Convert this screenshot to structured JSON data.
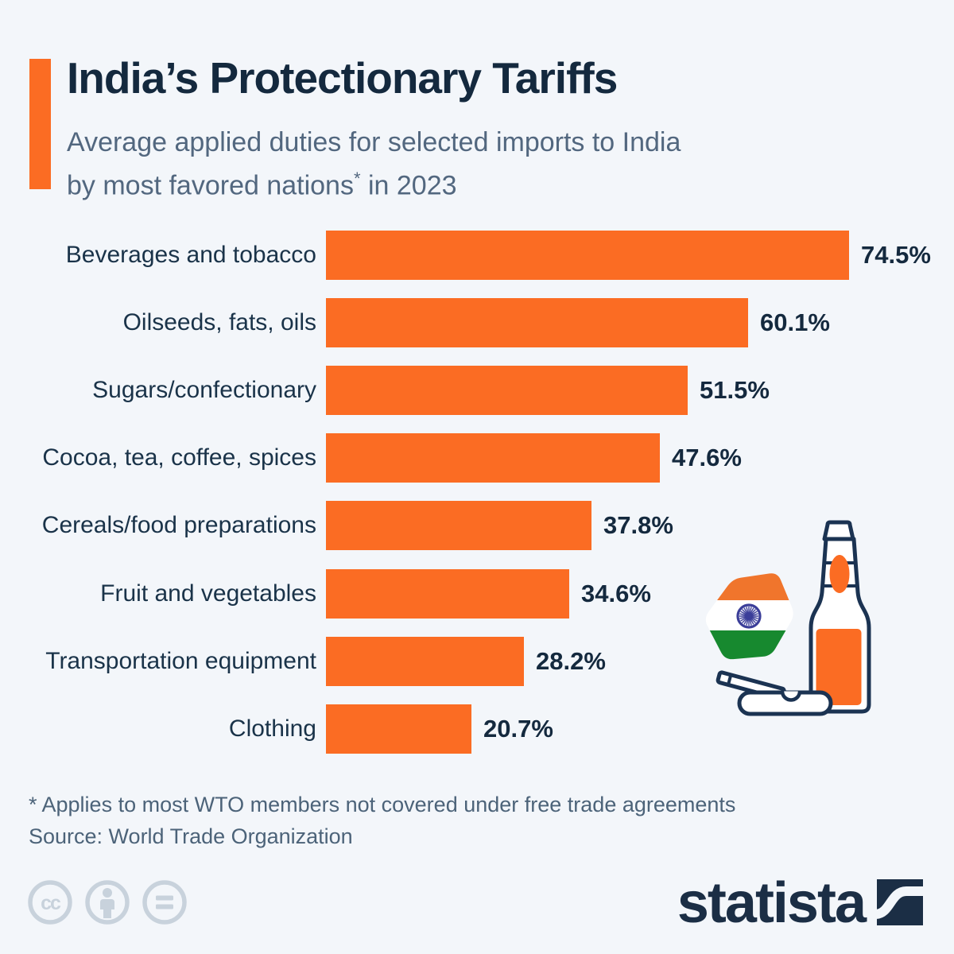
{
  "header": {
    "title": "India’s Protectionary Tariffs",
    "subtitle_line1": "Average applied duties for selected imports to India",
    "subtitle_line2": "by most favored nations",
    "subtitle_superscript": "*",
    "subtitle_line2_end": " in 2023"
  },
  "chart_data": {
    "type": "bar",
    "orientation": "horizontal",
    "title": "India’s Protectionary Tariffs",
    "subtitle": "Average applied duties for selected imports to India by most favored nations* in 2023",
    "unit": "%",
    "xlim": [
      0,
      80
    ],
    "grid": false,
    "legend": false,
    "categories": [
      "Beverages and tobacco",
      "Oilseeds, fats, oils",
      "Sugars/confectionary",
      "Cocoa, tea, coffee, spices",
      "Cereals/food preparations",
      "Fruit and vegetables",
      "Transportation equipment",
      "Clothing"
    ],
    "values": [
      74.5,
      60.1,
      51.5,
      47.6,
      37.8,
      34.6,
      28.2,
      20.7
    ],
    "value_labels": [
      "74.5%",
      "60.1%",
      "51.5%",
      "47.6%",
      "37.8%",
      "34.6%",
      "28.2%",
      "20.7%"
    ],
    "bar_color": "#FB6C23"
  },
  "footnote": "* Applies to most WTO members not covered under free trade agreements",
  "source": "Source: World Trade Organization",
  "branding": {
    "logo_text": "statista"
  },
  "icons": {
    "cc_label": "cc",
    "names": [
      "creative-commons-icon",
      "attribution-icon",
      "no-derivatives-icon"
    ]
  },
  "colors": {
    "background": "#F3F6FA",
    "accent_orange": "#FB6C23",
    "title_navy": "#14293E",
    "subtitle_slate": "#52677F",
    "category_navy": "#1A3349",
    "footnote_slate": "#4C6379",
    "license_icon_gray": "#C8D2DC",
    "logo_navy": "#1B2E45",
    "flag_saffron": "#F0752C",
    "flag_green": "#17892F",
    "chakra_blue": "#3B3E99",
    "illustration_outline_navy": "#1B3352"
  }
}
